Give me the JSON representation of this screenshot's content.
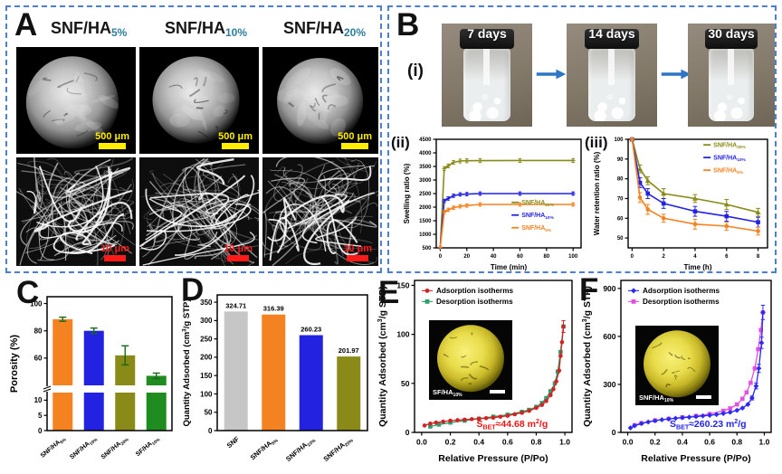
{
  "figure": {
    "panel_a": {
      "label": "A",
      "columns": [
        {
          "base": "SNF/HA",
          "sub": "5%"
        },
        {
          "base": "SNF/HA",
          "sub": "10%"
        },
        {
          "base": "SNF/HA",
          "sub": "20%"
        }
      ],
      "scalebar_top": "500 μm",
      "scalebar_bottom": "10 μm"
    },
    "panel_b": {
      "label": "B",
      "sub_i": "(i)",
      "sub_ii": "(ii)",
      "sub_iii": "(iii)",
      "vials": [
        {
          "label": "7 days"
        },
        {
          "label": "14 days"
        },
        {
          "label": "30 days"
        }
      ]
    },
    "panel_c": {
      "label": "C"
    },
    "panel_d": {
      "label": "D"
    },
    "panel_e": {
      "label": "E"
    },
    "panel_f": {
      "label": "F"
    }
  },
  "colors": {
    "orange": "#f58220",
    "blue": "#2222e0",
    "olive": "#8a8a18",
    "green": "#1f8c1f",
    "gray": "#c6c6c6",
    "red": "#d42222",
    "desorption_green": "#2e9e6b",
    "magenta": "#e24fe2",
    "error_green": "#156b15",
    "dashed_border": "#4a7fd4",
    "arrow_blue": "#2e75c4",
    "subscript_teal": "#2e7d9c",
    "scalebar_yellow": "#ffee00",
    "scalebar_red": "#ff1a1a"
  },
  "chart_data": [
    {
      "id": "swelling",
      "panel": "B(ii)",
      "type": "line",
      "xlabel": "Time (min)",
      "ylabel": "Swelling ratio (%)",
      "xlim": [
        -3,
        106
      ],
      "ylim": [
        500,
        4500
      ],
      "xticks": [
        0,
        20,
        40,
        60,
        80,
        100
      ],
      "xtick_labels": [
        "0",
        "20",
        "40",
        "60",
        "80",
        "100"
      ],
      "yticks": [
        500,
        1000,
        1500,
        2000,
        2500,
        3000,
        3500,
        4000,
        4500
      ],
      "legend_position": "lower right",
      "series": [
        {
          "name": "SNF/HA_{20%}",
          "color": "#8a8a18",
          "marker": "plus",
          "x": [
            0,
            3,
            6,
            10,
            15,
            20,
            30,
            60,
            100
          ],
          "y": [
            520,
            3420,
            3520,
            3650,
            3700,
            3710,
            3715,
            3720,
            3720
          ],
          "err": [
            0,
            70,
            70,
            70,
            70,
            70,
            70,
            70,
            70
          ]
        },
        {
          "name": "SNF/HA_{10%}",
          "color": "#2222e0",
          "marker": "plus",
          "x": [
            0,
            3,
            6,
            10,
            15,
            20,
            30,
            60,
            100
          ],
          "y": [
            520,
            2230,
            2320,
            2420,
            2470,
            2480,
            2500,
            2500,
            2500
          ],
          "err": [
            0,
            60,
            60,
            60,
            60,
            60,
            60,
            60,
            60
          ]
        },
        {
          "name": "SNF/HA_{5%}",
          "color": "#f58220",
          "marker": "plus",
          "x": [
            0,
            3,
            6,
            10,
            15,
            20,
            30,
            60,
            100
          ],
          "y": [
            520,
            1820,
            1900,
            1980,
            2030,
            2060,
            2100,
            2100,
            2100
          ],
          "err": [
            0,
            60,
            60,
            60,
            60,
            60,
            60,
            60,
            60
          ]
        }
      ]
    },
    {
      "id": "water_retention",
      "panel": "B(iii)",
      "type": "line",
      "xlabel": "Time (h)",
      "ylabel": "Water retention ratio (%)",
      "xlim": [
        -0.25,
        8.6
      ],
      "ylim": [
        45,
        100
      ],
      "xticks": [
        0,
        2,
        4,
        6,
        8
      ],
      "xtick_labels": [
        "0",
        "2",
        "4",
        "6",
        "8"
      ],
      "yticks": [
        50,
        60,
        70,
        80,
        90,
        100
      ],
      "legend_position": "upper right",
      "series": [
        {
          "name": "SNF/HA_{20%}",
          "color": "#8a8a18",
          "marker": "triangle",
          "x": [
            0,
            0.5,
            1,
            2,
            4,
            6,
            8
          ],
          "y": [
            100,
            85,
            79,
            72.5,
            70,
            67,
            63
          ],
          "err": [
            0,
            2,
            2,
            2.5,
            2,
            2.5,
            2
          ]
        },
        {
          "name": "SNF/HA_{10%}",
          "color": "#2222e0",
          "marker": "square",
          "x": [
            0,
            0.5,
            1,
            2,
            4,
            6,
            8
          ],
          "y": [
            100,
            78,
            72.5,
            67.5,
            63.5,
            61,
            58
          ],
          "err": [
            0,
            2.5,
            2.5,
            2.5,
            2.5,
            2.5,
            2.5
          ]
        },
        {
          "name": "SNF/HA_{5%}",
          "color": "#f58220",
          "marker": "circle",
          "x": [
            0,
            0.5,
            1,
            2,
            4,
            6,
            8
          ],
          "y": [
            100,
            70.5,
            64.5,
            60,
            57,
            56,
            53.5
          ],
          "err": [
            0,
            2.5,
            2.5,
            2,
            2.5,
            2,
            2
          ]
        }
      ]
    },
    {
      "id": "porosity",
      "panel": "C",
      "type": "bar",
      "ylabel": "Porosity (%)",
      "broken_axis": true,
      "categories": [
        "SNF/HA_{5%}",
        "SNF/HA_{10%}",
        "SNF/HA_{20%}",
        "SF/HA_{10%}"
      ],
      "values": [
        88.5,
        80,
        62,
        47
      ],
      "errors": [
        1.5,
        2,
        7,
        2
      ],
      "bar_colors": [
        "#f58220",
        "#2222e0",
        "#8a8a18",
        "#1f8c1f"
      ],
      "error_color": "#156b15",
      "lower_ticks": [
        0,
        5,
        10
      ],
      "upper_ticks": [
        60,
        80,
        100
      ],
      "lower_range": [
        0,
        12.5
      ],
      "upper_range": [
        40,
        105
      ]
    },
    {
      "id": "quantity_adsorbed_bar",
      "panel": "D",
      "type": "bar",
      "ylabel": "Quantity Adsorbed (cm^{3}/g STP)",
      "categories": [
        "SNF",
        "SNF/HA_{5%}",
        "SNF/HA_{10%}",
        "SNF/HA_{20%}"
      ],
      "values": [
        324.71,
        316.39,
        260.23,
        201.97
      ],
      "value_labels": [
        "324.71",
        "316.39",
        "260.23",
        "201.97"
      ],
      "bar_colors": [
        "#c6c6c6",
        "#f58220",
        "#2222e0",
        "#8a8a18"
      ],
      "ylim": [
        0,
        370
      ],
      "yticks": [
        0,
        50,
        100,
        150,
        200,
        250,
        300,
        350
      ]
    },
    {
      "id": "isotherm_sf_ha",
      "panel": "E",
      "type": "scatter",
      "xlabel": "Relative Pressure (P/Po)",
      "ylabel": "Quantity Adsorbed (cm^{3}/g STP)",
      "xlim": [
        -0.05,
        1.05
      ],
      "ylim": [
        0,
        155
      ],
      "xticks": [
        0.0,
        0.2,
        0.4,
        0.6,
        0.8,
        1.0
      ],
      "xtick_labels": [
        "0.0",
        "0.2",
        "0.4",
        "0.6",
        "0.8",
        "1.0"
      ],
      "yticks": [
        0,
        50,
        100,
        150
      ],
      "annotation": {
        "text": "S_{BET}≈44.68 m^{2}/g",
        "color": "#e81515"
      },
      "inset_label": "SF/HA_{10%}",
      "legend_position": "upper left",
      "series": [
        {
          "name": "Adsorption isotherms",
          "color": "#d42222",
          "marker": "circle",
          "x": [
            0.02,
            0.06,
            0.1,
            0.15,
            0.2,
            0.25,
            0.3,
            0.35,
            0.4,
            0.45,
            0.5,
            0.55,
            0.6,
            0.65,
            0.7,
            0.75,
            0.8,
            0.84,
            0.87,
            0.9,
            0.92,
            0.94,
            0.96,
            0.97,
            0.98,
            0.99
          ],
          "y": [
            7,
            9,
            10,
            11,
            12,
            12.5,
            13,
            13.5,
            14,
            14.5,
            15,
            16,
            17,
            18.5,
            20,
            22,
            25,
            28,
            32,
            38,
            44,
            52,
            63,
            78,
            92,
            108
          ],
          "err": [
            0,
            0,
            0,
            0,
            0,
            0,
            0,
            0,
            0,
            0,
            0,
            0,
            0,
            0,
            0,
            0,
            0,
            0,
            0,
            0,
            0,
            0,
            0,
            0,
            0,
            6
          ]
        },
        {
          "name": "Desorption isotherms",
          "color": "#2e9e6b",
          "marker": "square",
          "x": [
            0.99,
            0.97,
            0.95,
            0.93,
            0.9,
            0.87,
            0.84,
            0.8,
            0.75,
            0.7,
            0.6,
            0.5,
            0.4,
            0.3,
            0.2,
            0.12,
            0.06
          ],
          "y": [
            108,
            82,
            62,
            50,
            42,
            35,
            30,
            26,
            23,
            21,
            18,
            16,
            14,
            12,
            10,
            8,
            6
          ]
        }
      ]
    },
    {
      "id": "isotherm_snf_ha",
      "panel": "F",
      "type": "scatter",
      "xlabel": "Relative Pressure (P/Po)",
      "ylabel": "Quantity Adsorbed (cm^{3}/g STP)",
      "xlim": [
        -0.05,
        1.05
      ],
      "ylim": [
        0,
        950
      ],
      "xticks": [
        0.0,
        0.2,
        0.4,
        0.6,
        0.8,
        1.0
      ],
      "xtick_labels": [
        "0.0",
        "0.2",
        "0.4",
        "0.6",
        "0.8",
        "1.0"
      ],
      "yticks": [
        0,
        300,
        600,
        900
      ],
      "annotation": {
        "text": "S_{BET}≈260.23 m^{2}/g",
        "color": "#2222e8"
      },
      "inset_label": "SNF/HA_{10%}",
      "legend_position": "upper left",
      "series": [
        {
          "name": "Adsorption isotherms",
          "color": "#2a2af0",
          "marker": "diamond",
          "x": [
            0.02,
            0.05,
            0.1,
            0.15,
            0.2,
            0.25,
            0.3,
            0.35,
            0.4,
            0.45,
            0.5,
            0.55,
            0.6,
            0.65,
            0.7,
            0.75,
            0.8,
            0.84,
            0.88,
            0.91,
            0.94,
            0.96,
            0.98,
            0.99
          ],
          "y": [
            28,
            42,
            55,
            65,
            73,
            79,
            84,
            88,
            92,
            95,
            99,
            103,
            107,
            112,
            118,
            126,
            138,
            152,
            175,
            215,
            290,
            400,
            560,
            750
          ],
          "err": [
            0,
            0,
            0,
            0,
            0,
            0,
            0,
            0,
            0,
            0,
            0,
            0,
            0,
            0,
            0,
            0,
            0,
            0,
            0,
            12,
            18,
            25,
            35,
            45
          ]
        },
        {
          "name": "Desorption isotherms",
          "color": "#e24fe2",
          "marker": "square",
          "x": [
            0.99,
            0.975,
            0.955,
            0.93,
            0.9,
            0.87,
            0.84,
            0.8,
            0.75,
            0.7,
            0.6,
            0.5,
            0.4,
            0.3,
            0.2,
            0.1,
            0.05
          ],
          "y": [
            750,
            640,
            520,
            400,
            310,
            250,
            210,
            175,
            150,
            135,
            115,
            103,
            94,
            85,
            75,
            58,
            45
          ]
        }
      ]
    }
  ]
}
